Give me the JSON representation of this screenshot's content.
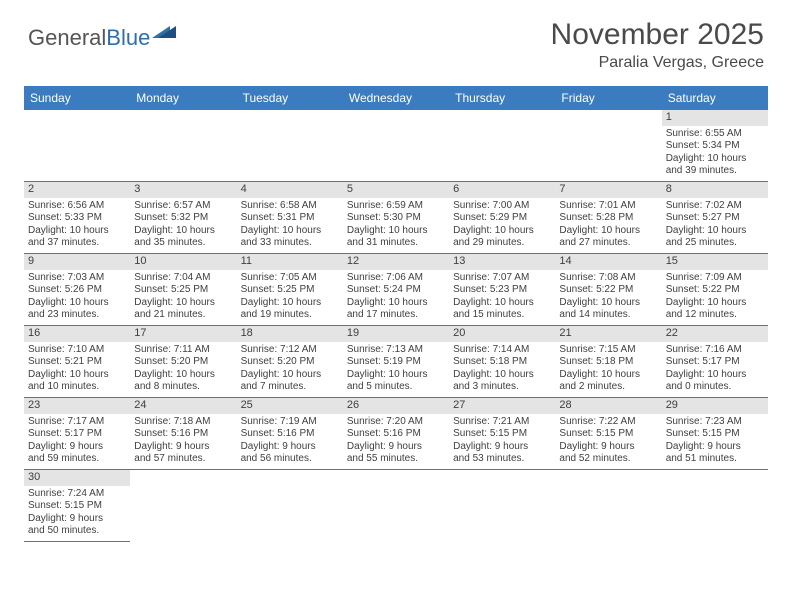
{
  "logo": {
    "part1": "General",
    "part2": "Blue"
  },
  "title": {
    "month": "November 2025",
    "location": "Paralia Vergas, Greece"
  },
  "colors": {
    "header_bg": "#3b7bbf",
    "header_text": "#ffffff",
    "daynum_bg": "#e4e4e4",
    "cell_border": "#3b7bbf",
    "text": "#3f3f3f",
    "logo_gray": "#555555",
    "logo_blue": "#2f6fa8"
  },
  "dayNames": [
    "Sunday",
    "Monday",
    "Tuesday",
    "Wednesday",
    "Thursday",
    "Friday",
    "Saturday"
  ],
  "weeks": [
    [
      null,
      null,
      null,
      null,
      null,
      null,
      {
        "n": "1",
        "sr": "6:55 AM",
        "ss": "5:34 PM",
        "dh": "10",
        "dm": "39"
      }
    ],
    [
      {
        "n": "2",
        "sr": "6:56 AM",
        "ss": "5:33 PM",
        "dh": "10",
        "dm": "37"
      },
      {
        "n": "3",
        "sr": "6:57 AM",
        "ss": "5:32 PM",
        "dh": "10",
        "dm": "35"
      },
      {
        "n": "4",
        "sr": "6:58 AM",
        "ss": "5:31 PM",
        "dh": "10",
        "dm": "33"
      },
      {
        "n": "5",
        "sr": "6:59 AM",
        "ss": "5:30 PM",
        "dh": "10",
        "dm": "31"
      },
      {
        "n": "6",
        "sr": "7:00 AM",
        "ss": "5:29 PM",
        "dh": "10",
        "dm": "29"
      },
      {
        "n": "7",
        "sr": "7:01 AM",
        "ss": "5:28 PM",
        "dh": "10",
        "dm": "27"
      },
      {
        "n": "8",
        "sr": "7:02 AM",
        "ss": "5:27 PM",
        "dh": "10",
        "dm": "25"
      }
    ],
    [
      {
        "n": "9",
        "sr": "7:03 AM",
        "ss": "5:26 PM",
        "dh": "10",
        "dm": "23"
      },
      {
        "n": "10",
        "sr": "7:04 AM",
        "ss": "5:25 PM",
        "dh": "10",
        "dm": "21"
      },
      {
        "n": "11",
        "sr": "7:05 AM",
        "ss": "5:25 PM",
        "dh": "10",
        "dm": "19"
      },
      {
        "n": "12",
        "sr": "7:06 AM",
        "ss": "5:24 PM",
        "dh": "10",
        "dm": "17"
      },
      {
        "n": "13",
        "sr": "7:07 AM",
        "ss": "5:23 PM",
        "dh": "10",
        "dm": "15"
      },
      {
        "n": "14",
        "sr": "7:08 AM",
        "ss": "5:22 PM",
        "dh": "10",
        "dm": "14"
      },
      {
        "n": "15",
        "sr": "7:09 AM",
        "ss": "5:22 PM",
        "dh": "10",
        "dm": "12"
      }
    ],
    [
      {
        "n": "16",
        "sr": "7:10 AM",
        "ss": "5:21 PM",
        "dh": "10",
        "dm": "10"
      },
      {
        "n": "17",
        "sr": "7:11 AM",
        "ss": "5:20 PM",
        "dh": "10",
        "dm": "8"
      },
      {
        "n": "18",
        "sr": "7:12 AM",
        "ss": "5:20 PM",
        "dh": "10",
        "dm": "7"
      },
      {
        "n": "19",
        "sr": "7:13 AM",
        "ss": "5:19 PM",
        "dh": "10",
        "dm": "5"
      },
      {
        "n": "20",
        "sr": "7:14 AM",
        "ss": "5:18 PM",
        "dh": "10",
        "dm": "3"
      },
      {
        "n": "21",
        "sr": "7:15 AM",
        "ss": "5:18 PM",
        "dh": "10",
        "dm": "2"
      },
      {
        "n": "22",
        "sr": "7:16 AM",
        "ss": "5:17 PM",
        "dh": "10",
        "dm": "0"
      }
    ],
    [
      {
        "n": "23",
        "sr": "7:17 AM",
        "ss": "5:17 PM",
        "dh": "9",
        "dm": "59"
      },
      {
        "n": "24",
        "sr": "7:18 AM",
        "ss": "5:16 PM",
        "dh": "9",
        "dm": "57"
      },
      {
        "n": "25",
        "sr": "7:19 AM",
        "ss": "5:16 PM",
        "dh": "9",
        "dm": "56"
      },
      {
        "n": "26",
        "sr": "7:20 AM",
        "ss": "5:16 PM",
        "dh": "9",
        "dm": "55"
      },
      {
        "n": "27",
        "sr": "7:21 AM",
        "ss": "5:15 PM",
        "dh": "9",
        "dm": "53"
      },
      {
        "n": "28",
        "sr": "7:22 AM",
        "ss": "5:15 PM",
        "dh": "9",
        "dm": "52"
      },
      {
        "n": "29",
        "sr": "7:23 AM",
        "ss": "5:15 PM",
        "dh": "9",
        "dm": "51"
      }
    ],
    [
      {
        "n": "30",
        "sr": "7:24 AM",
        "ss": "5:15 PM",
        "dh": "9",
        "dm": "50"
      },
      null,
      null,
      null,
      null,
      null,
      null
    ]
  ],
  "labels": {
    "sunrise": "Sunrise: ",
    "sunset": "Sunset: ",
    "daylight1": "Daylight: ",
    "daylight2": " hours and ",
    "daylight3": " minutes."
  }
}
